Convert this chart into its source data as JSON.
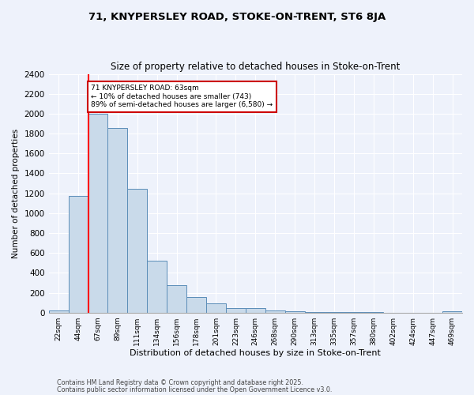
{
  "title1": "71, KNYPERSLEY ROAD, STOKE-ON-TRENT, ST6 8JA",
  "title2": "Size of property relative to detached houses in Stoke-on-Trent",
  "xlabel": "Distribution of detached houses by size in Stoke-on-Trent",
  "ylabel": "Number of detached properties",
  "bar_labels": [
    "22sqm",
    "44sqm",
    "67sqm",
    "89sqm",
    "111sqm",
    "134sqm",
    "156sqm",
    "178sqm",
    "201sqm",
    "223sqm",
    "246sqm",
    "268sqm",
    "290sqm",
    "313sqm",
    "335sqm",
    "357sqm",
    "380sqm",
    "402sqm",
    "424sqm",
    "447sqm",
    "469sqm"
  ],
  "bar_values": [
    25,
    1170,
    2000,
    1860,
    1245,
    520,
    278,
    155,
    90,
    42,
    42,
    18,
    15,
    8,
    4,
    3,
    2,
    1,
    1,
    1,
    15
  ],
  "bar_color": "#c9daea",
  "bar_edge_color": "#5b8db8",
  "red_line_index": 2,
  "annotation_title": "71 KNYPERSLEY ROAD: 63sqm",
  "annotation_line1": "← 10% of detached houses are smaller (743)",
  "annotation_line2": "89% of semi-detached houses are larger (6,580) →",
  "annotation_box_color": "#ffffff",
  "annotation_box_edge": "#cc0000",
  "footer1": "Contains HM Land Registry data © Crown copyright and database right 2025.",
  "footer2": "Contains public sector information licensed under the Open Government Licence v3.0.",
  "background_color": "#eef2fb",
  "grid_color": "#ffffff",
  "ylim": [
    0,
    2400
  ],
  "yticks": [
    0,
    200,
    400,
    600,
    800,
    1000,
    1200,
    1400,
    1600,
    1800,
    2000,
    2200,
    2400
  ]
}
